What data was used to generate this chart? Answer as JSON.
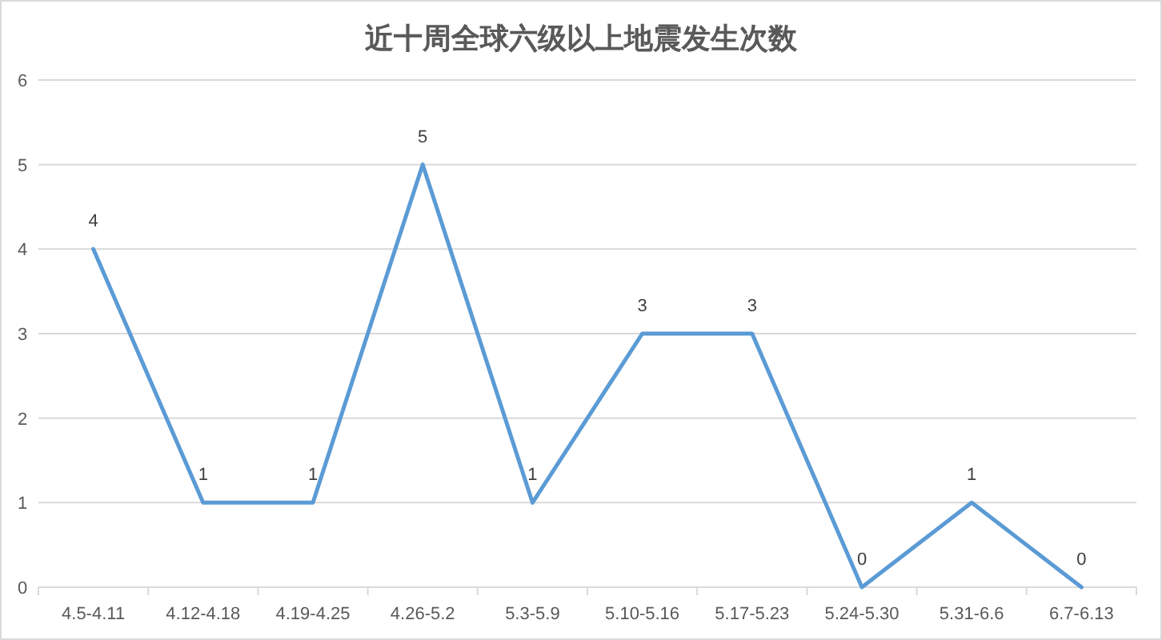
{
  "chart_data": {
    "type": "line",
    "title": "近十周全球六级以上地震发生次数",
    "categories": [
      "4.5-4.11",
      "4.12-4.18",
      "4.19-4.25",
      "4.26-5.2",
      "5.3-5.9",
      "5.10-5.16",
      "5.17-5.23",
      "5.24-5.30",
      "5.31-6.6",
      "6.7-6.13"
    ],
    "values": [
      4,
      1,
      1,
      5,
      1,
      3,
      3,
      0,
      1,
      0
    ],
    "color": "#5b9bd5",
    "ylim": [
      0,
      6
    ],
    "yticks": [
      0,
      1,
      2,
      3,
      4,
      5,
      6
    ],
    "grid": "y",
    "data_labels": true
  }
}
